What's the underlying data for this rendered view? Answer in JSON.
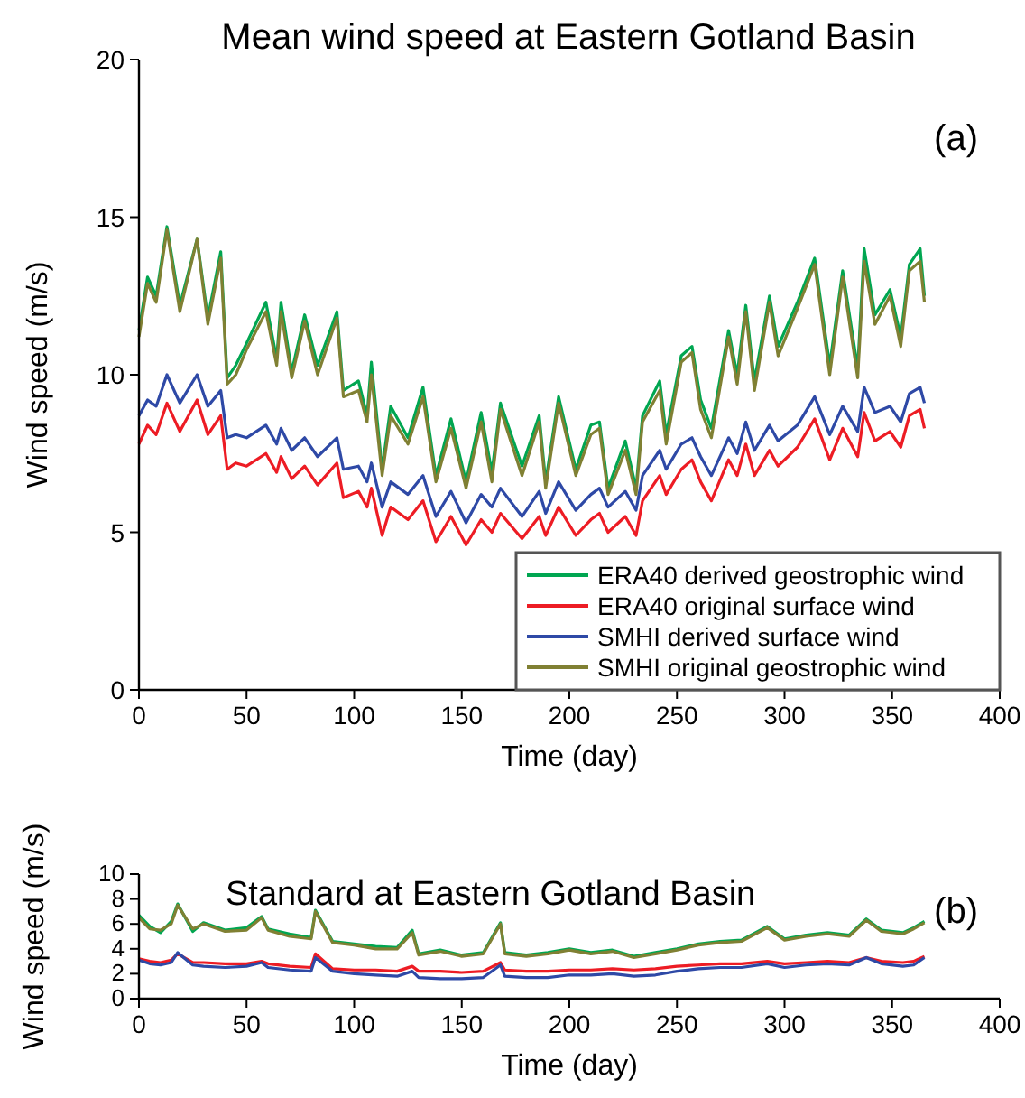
{
  "chart_data": [
    {
      "type": "line",
      "title": "Mean wind speed at Eastern Gotland Basin",
      "xlabel": "Time (day)",
      "ylabel": "Wind speed (m/s)",
      "annotations": [
        "(a)"
      ],
      "xlim": [
        0,
        400
      ],
      "xticks": [
        0,
        50,
        100,
        150,
        200,
        250,
        300,
        350,
        400
      ],
      "ylim": [
        0,
        20
      ],
      "yticks": [
        0,
        5,
        10,
        15,
        20
      ],
      "legend": "bottom right",
      "grid": false,
      "line_style": "solid",
      "marker": "none",
      "x": [
        0,
        4,
        8,
        13,
        19,
        27,
        32,
        38,
        41,
        45,
        50,
        59,
        64,
        66,
        71,
        77,
        83,
        92,
        95,
        102,
        106,
        108,
        113,
        117,
        125,
        132,
        138,
        145,
        152,
        159,
        164,
        168,
        178,
        186,
        189,
        195,
        203,
        210,
        214,
        218,
        226,
        231,
        234,
        242,
        245,
        252,
        257,
        261,
        266,
        274,
        278,
        282,
        286,
        293,
        297,
        306,
        314,
        321,
        327,
        334,
        337,
        342,
        349,
        354,
        358,
        363,
        365
      ],
      "series": [
        {
          "name": "ERA40 derived geostrophic wind",
          "color": "#00a651",
          "values": [
            11.4,
            13.1,
            12.5,
            14.7,
            12.2,
            14.3,
            11.8,
            13.9,
            9.9,
            10.3,
            11.0,
            12.3,
            10.5,
            12.3,
            10.1,
            11.9,
            10.3,
            12.0,
            9.5,
            9.8,
            8.7,
            10.4,
            7.0,
            9.0,
            8.0,
            9.6,
            6.8,
            8.6,
            6.6,
            8.8,
            6.9,
            9.1,
            7.1,
            8.7,
            6.6,
            9.3,
            7.0,
            8.4,
            8.5,
            6.4,
            7.9,
            6.4,
            8.7,
            9.8,
            8.1,
            10.6,
            10.9,
            9.2,
            8.3,
            11.4,
            10.0,
            12.2,
            9.8,
            12.5,
            10.9,
            12.3,
            13.7,
            10.3,
            13.3,
            10.2,
            14.0,
            11.9,
            12.7,
            11.2,
            13.5,
            14.0,
            12.5
          ]
        },
        {
          "name": "ERA40 original surface wind",
          "color": "#ed1c24",
          "values": [
            7.8,
            8.4,
            8.1,
            9.1,
            8.2,
            9.2,
            8.1,
            8.7,
            7.0,
            7.2,
            7.1,
            7.5,
            6.9,
            7.4,
            6.7,
            7.1,
            6.5,
            7.2,
            6.1,
            6.3,
            5.8,
            6.4,
            4.9,
            5.8,
            5.4,
            6.0,
            4.7,
            5.5,
            4.6,
            5.4,
            5.0,
            5.6,
            4.8,
            5.5,
            4.9,
            5.8,
            4.9,
            5.4,
            5.6,
            5.0,
            5.5,
            4.9,
            6.0,
            6.8,
            6.2,
            7.0,
            7.3,
            6.6,
            6.0,
            7.3,
            6.8,
            7.8,
            6.8,
            7.6,
            7.1,
            7.7,
            8.6,
            7.3,
            8.3,
            7.4,
            8.8,
            7.9,
            8.2,
            7.7,
            8.7,
            8.9,
            8.3
          ]
        },
        {
          "name": "SMHI derived surface wind",
          "color": "#2e49a6",
          "values": [
            8.7,
            9.2,
            9.0,
            10.0,
            9.1,
            10.0,
            9.0,
            9.5,
            8.0,
            8.1,
            8.0,
            8.4,
            7.8,
            8.3,
            7.6,
            8.0,
            7.4,
            8.0,
            7.0,
            7.1,
            6.6,
            7.2,
            5.8,
            6.6,
            6.2,
            6.8,
            5.5,
            6.3,
            5.3,
            6.2,
            5.8,
            6.4,
            5.5,
            6.3,
            5.6,
            6.6,
            5.7,
            6.2,
            6.4,
            5.8,
            6.3,
            5.7,
            6.8,
            7.6,
            7.0,
            7.8,
            8.0,
            7.4,
            6.8,
            8.0,
            7.5,
            8.5,
            7.6,
            8.4,
            7.9,
            8.4,
            9.3,
            8.1,
            9.0,
            8.2,
            9.6,
            8.8,
            9.0,
            8.5,
            9.4,
            9.6,
            9.1
          ]
        },
        {
          "name": "SMHI original geostrophic wind",
          "color": "#808033",
          "values": [
            11.2,
            12.9,
            12.3,
            14.6,
            12.0,
            14.3,
            11.6,
            13.7,
            9.7,
            10.0,
            10.8,
            12.0,
            10.3,
            12.0,
            9.9,
            11.7,
            10.0,
            11.8,
            9.3,
            9.5,
            8.5,
            10.0,
            6.8,
            8.7,
            7.8,
            9.3,
            6.6,
            8.3,
            6.4,
            8.5,
            6.6,
            8.9,
            6.8,
            8.5,
            6.4,
            9.1,
            6.8,
            8.1,
            8.3,
            6.2,
            7.6,
            6.2,
            8.5,
            9.5,
            7.8,
            10.4,
            10.7,
            8.9,
            8.0,
            11.2,
            9.7,
            12.0,
            9.5,
            12.3,
            10.6,
            12.1,
            13.5,
            10.0,
            13.1,
            9.9,
            13.6,
            11.6,
            12.5,
            10.9,
            13.3,
            13.6,
            12.3
          ]
        }
      ]
    },
    {
      "type": "line",
      "title": "Standard at Eastern Gotland Basin",
      "xlabel": "Time (day)",
      "ylabel": "Wind speed (m/s)",
      "annotations": [
        "(b)"
      ],
      "xlim": [
        0,
        400
      ],
      "xticks": [
        0,
        50,
        100,
        150,
        200,
        250,
        300,
        350,
        400
      ],
      "ylim": [
        0,
        10
      ],
      "yticks": [
        0,
        2,
        4,
        6,
        8,
        10
      ],
      "legend": false,
      "grid": false,
      "line_style": "solid",
      "marker": "none",
      "x": [
        0,
        5,
        10,
        15,
        18,
        25,
        30,
        40,
        50,
        57,
        60,
        70,
        80,
        82,
        90,
        100,
        110,
        120,
        127,
        130,
        140,
        150,
        160,
        168,
        170,
        180,
        190,
        200,
        210,
        220,
        230,
        240,
        250,
        260,
        270,
        280,
        292,
        300,
        310,
        320,
        330,
        338,
        345,
        355,
        360,
        365
      ],
      "series": [
        {
          "color": "#00a651",
          "values": [
            6.7,
            5.8,
            5.3,
            6.2,
            7.6,
            5.4,
            6.1,
            5.5,
            5.7,
            6.6,
            5.6,
            5.2,
            4.9,
            7.1,
            4.6,
            4.4,
            4.2,
            4.1,
            5.5,
            3.6,
            3.9,
            3.5,
            3.7,
            6.1,
            3.7,
            3.5,
            3.7,
            4.0,
            3.7,
            3.9,
            3.4,
            3.7,
            4.0,
            4.4,
            4.6,
            4.7,
            5.8,
            4.8,
            5.1,
            5.3,
            5.1,
            6.4,
            5.5,
            5.3,
            5.7,
            6.2
          ]
        },
        {
          "color": "#ed1c24",
          "values": [
            3.2,
            3.0,
            2.9,
            3.1,
            3.6,
            2.9,
            2.9,
            2.8,
            2.8,
            3.0,
            2.8,
            2.6,
            2.5,
            3.6,
            2.4,
            2.3,
            2.3,
            2.2,
            2.6,
            2.2,
            2.2,
            2.1,
            2.2,
            2.9,
            2.3,
            2.2,
            2.2,
            2.3,
            2.3,
            2.4,
            2.3,
            2.4,
            2.6,
            2.7,
            2.8,
            2.8,
            3.0,
            2.8,
            2.9,
            3.0,
            2.9,
            3.3,
            3.0,
            2.9,
            3.0,
            3.4
          ]
        },
        {
          "color": "#2e49a6",
          "values": [
            3.1,
            2.8,
            2.7,
            2.9,
            3.7,
            2.7,
            2.6,
            2.5,
            2.6,
            2.9,
            2.5,
            2.3,
            2.2,
            3.3,
            2.2,
            2.0,
            1.9,
            1.8,
            2.2,
            1.7,
            1.6,
            1.6,
            1.7,
            2.7,
            1.8,
            1.7,
            1.7,
            1.9,
            1.9,
            2.0,
            1.8,
            1.9,
            2.2,
            2.4,
            2.5,
            2.5,
            2.8,
            2.5,
            2.7,
            2.8,
            2.7,
            3.3,
            2.8,
            2.6,
            2.7,
            3.3
          ]
        },
        {
          "color": "#808033",
          "values": [
            6.5,
            5.6,
            5.5,
            6.0,
            7.5,
            5.6,
            6.0,
            5.4,
            5.5,
            6.5,
            5.5,
            5.0,
            4.8,
            7.0,
            4.5,
            4.3,
            4.0,
            4.0,
            5.3,
            3.5,
            3.8,
            3.4,
            3.6,
            6.0,
            3.6,
            3.4,
            3.6,
            3.9,
            3.6,
            3.8,
            3.3,
            3.6,
            3.9,
            4.3,
            4.5,
            4.6,
            5.7,
            4.7,
            5.0,
            5.2,
            5.0,
            6.3,
            5.4,
            5.2,
            5.6,
            6.1
          ]
        }
      ]
    }
  ]
}
